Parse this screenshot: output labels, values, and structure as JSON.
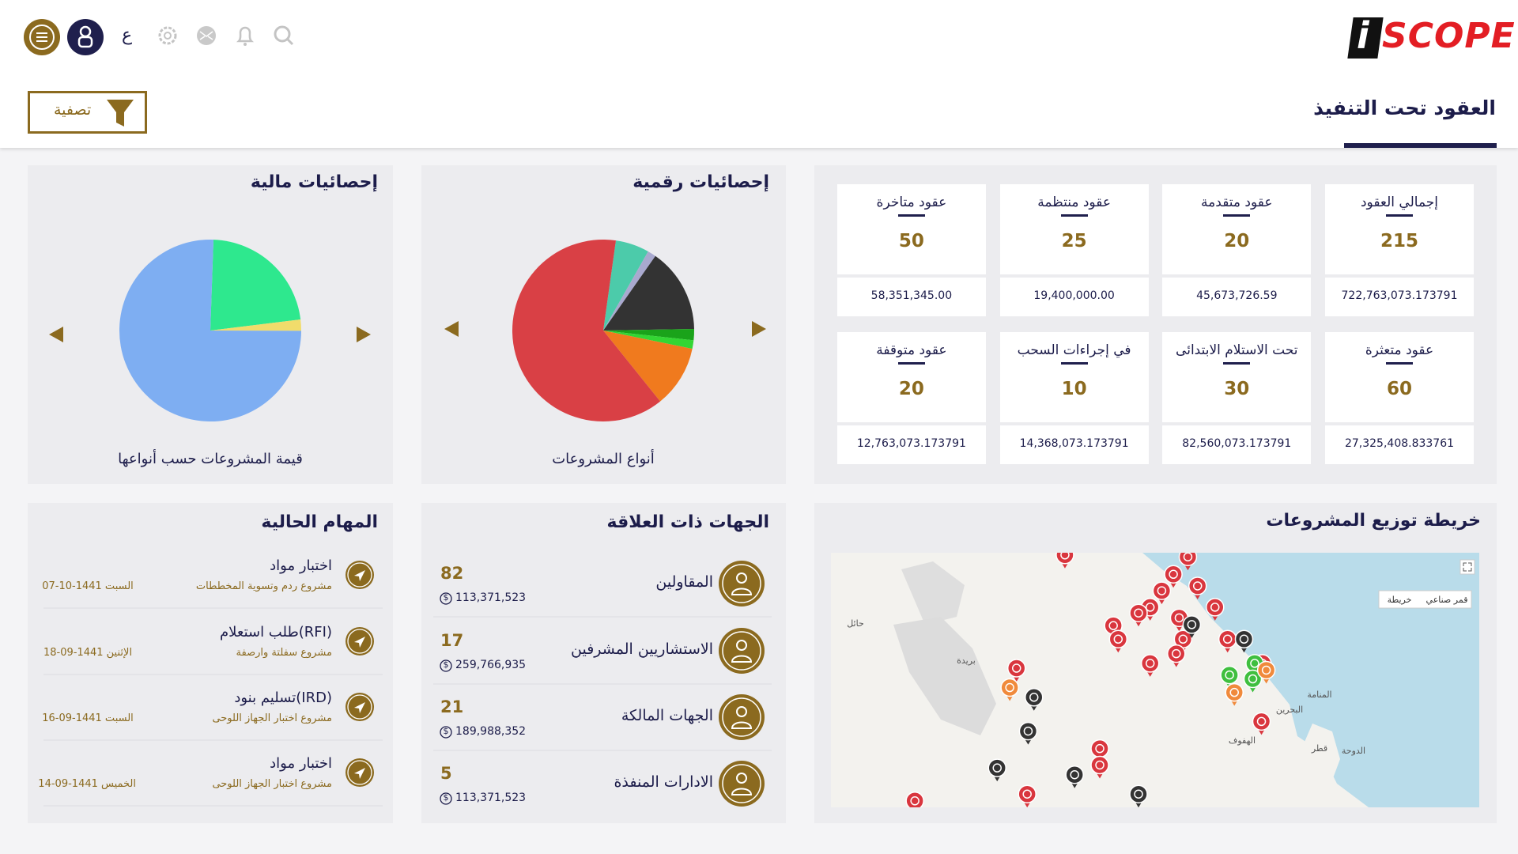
{
  "header": {
    "logo_mark": "i",
    "logo_text": "SCOPE",
    "language": "ع",
    "page_title": "العقود تحت التنفيذ",
    "filter_button": "تصفية"
  },
  "contract_stats": {
    "cards": [
      {
        "title": "إجمالي العقود",
        "count": 215,
        "amount": "722,763,073.173791"
      },
      {
        "title": "عقود متقدمة",
        "count": 20,
        "amount": "45,673,726.59"
      },
      {
        "title": "عقود منتظمة",
        "count": 25,
        "amount": "19,400,000.00"
      },
      {
        "title": "عقود متاخرة",
        "count": 50,
        "amount": "58,351,345.00"
      },
      {
        "title": "عقود متعثرة",
        "count": 60,
        "amount": "27,325,408.833761"
      },
      {
        "title": "تحت الاستلام الابتدائى",
        "count": 30,
        "amount": "82,560,073.173791"
      },
      {
        "title": "في إجراءات السحب",
        "count": 10,
        "amount": "14,368,073.173791"
      },
      {
        "title": "عقود متوقفة",
        "count": 20,
        "amount": "12,763,073.173791"
      }
    ]
  },
  "numeric_stats": {
    "title": "إحصائيات رقمية",
    "caption": "أنواع المشروعات",
    "chart_data": {
      "type": "pie",
      "values": [
        6,
        1.5,
        15,
        2,
        1.5,
        11,
        63
      ],
      "colors": [
        "#4ccbaa",
        "#a9a9cf",
        "#333333",
        "#1aa31a",
        "#33d633",
        "#f07a1e",
        "#d94045"
      ]
    }
  },
  "financial_stats": {
    "title": "إحصائيات مالية",
    "caption": "قيمة المشروعات حسب أنواعها",
    "chart_data": {
      "type": "pie",
      "values": [
        22.5,
        2,
        75.5
      ],
      "colors": [
        "#2ee88e",
        "#f1dc6b",
        "#7eaef2"
      ]
    }
  },
  "related_parties": {
    "title": "الجهات ذات العلاقة",
    "currency_symbol": "$",
    "rows": [
      {
        "label": "المقاولين",
        "count": 82,
        "amount": "113,371,523"
      },
      {
        "label": "الاستشاريين المشرفين",
        "count": 17,
        "amount": "259,766,935"
      },
      {
        "label": "الجهات المالكة",
        "count": 21,
        "amount": "189,988,352"
      },
      {
        "label": "الادارات المنفذة",
        "count": 5,
        "amount": "113,371,523"
      }
    ]
  },
  "current_tasks": {
    "title": "المهام الحالية",
    "rows": [
      {
        "title": "اختبار مواد",
        "project": "مشروع ردم وتسوية المخططات",
        "date": "السبت 1441-10-07"
      },
      {
        "title": "(RFI)طلب استعلام",
        "project": "مشروع سفلتة وارصفة",
        "date": "الإثنين 1441-09-18"
      },
      {
        "title": "(IRD)تسليم بنود",
        "project": "مشروع اختبار الجهاز اللوحى",
        "date": "السبت 1441-09-16"
      },
      {
        "title": "اختبار مواد",
        "project": "مشروع اختبار الجهاز اللوحى",
        "date": "الخميس 1441-09-14"
      }
    ]
  },
  "map": {
    "title": "خريطة توزيع المشروعات",
    "controls": [
      "قمر صناعي",
      "خريطة"
    ],
    "places": [
      "قطر",
      "الدوحة",
      "البحرين",
      "المنامة",
      "الهفوف",
      "بريدة",
      "حائل"
    ]
  }
}
